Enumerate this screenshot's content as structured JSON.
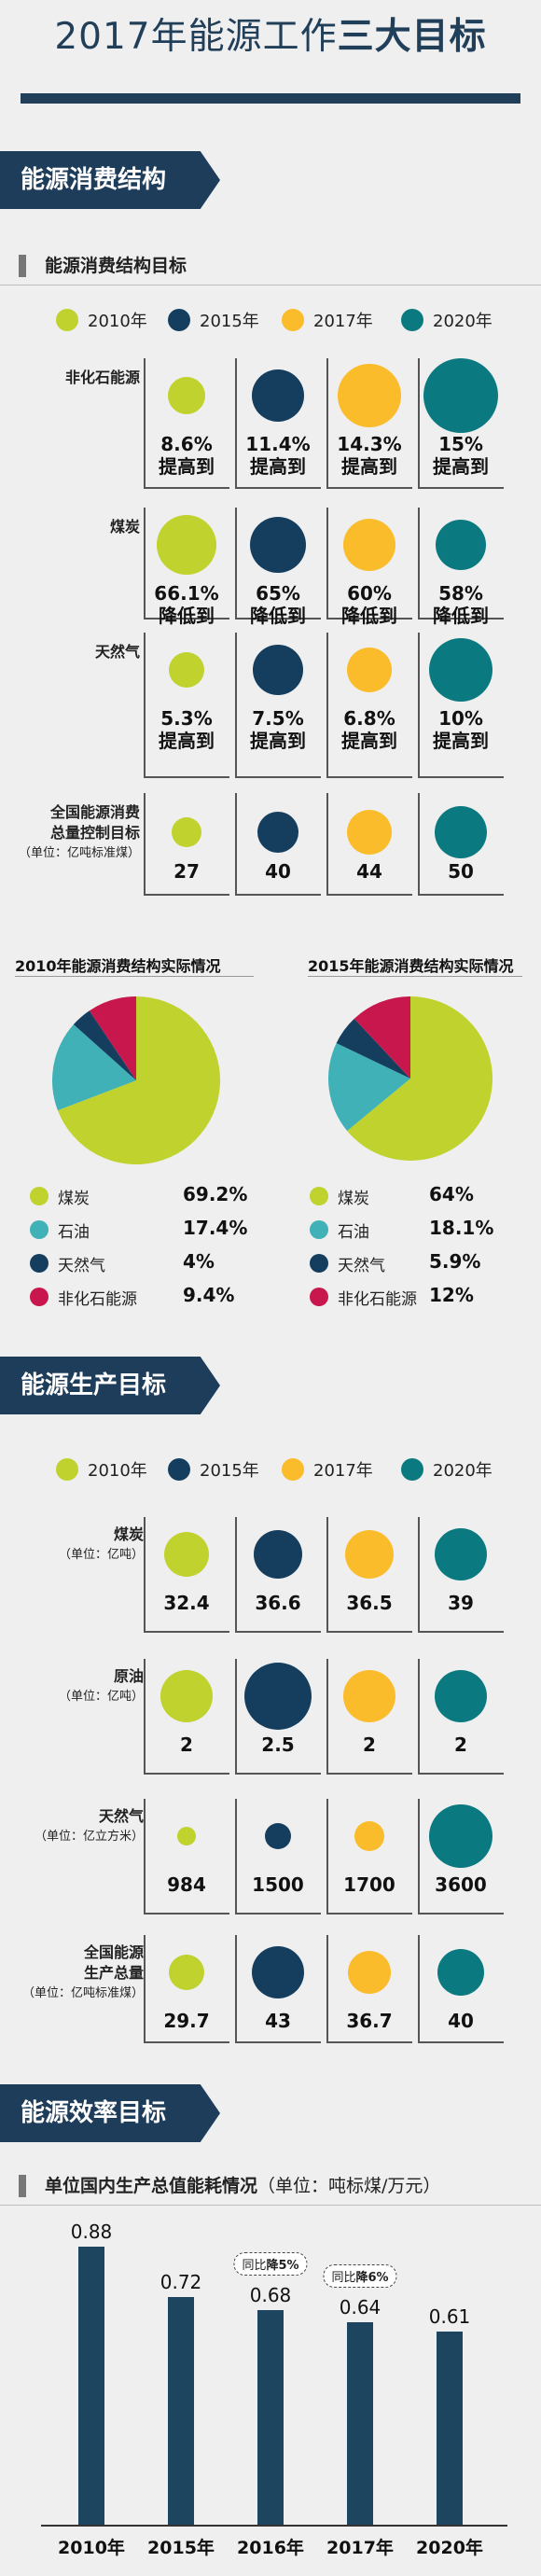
{
  "page_title": {
    "normal": "2017年能源工作",
    "bold": "三大目标"
  },
  "colors": {
    "c2010": "#bfd22e",
    "c2015": "#153e5e",
    "c2017": "#fbbc2b",
    "c2020": "#0b7a80",
    "navy": "#1d3d5a"
  },
  "legend": [
    "2010年",
    "2015年",
    "2017年",
    "2020年"
  ],
  "section1": {
    "banner": "能源消费结构",
    "sub_title": "能源消费结构目标",
    "rows": [
      {
        "label": "非化石能源",
        "unit": "",
        "values": [
          "8.6%",
          "11.4%",
          "14.3%",
          "15%"
        ],
        "suffix": "提高到",
        "sizes": [
          20,
          28,
          34,
          40
        ]
      },
      {
        "label": "煤炭",
        "unit": "",
        "values": [
          "66.1%",
          "65%",
          "60%",
          "58%"
        ],
        "suffix": "降低到",
        "sizes": [
          32,
          30,
          28,
          27
        ]
      },
      {
        "label": "天然气",
        "unit": "",
        "values": [
          "5.3%",
          "7.5%",
          "6.8%",
          "10%"
        ],
        "suffix": "提高到",
        "sizes": [
          19,
          27,
          24,
          34
        ]
      },
      {
        "label": "全国能源消费总量控制目标",
        "unit": "（单位：亿吨标准煤）",
        "values": [
          "27",
          "40",
          "44",
          "50"
        ],
        "suffix": "",
        "sizes": [
          16,
          22,
          24,
          28
        ]
      }
    ]
  },
  "pies": {
    "title_2010": "2010年能源消费结构实际情况",
    "title_2015": "2015年能源消费结构实际情况",
    "items": [
      {
        "name": "煤炭",
        "color": "#bfd22e"
      },
      {
        "name": "石油",
        "color": "#3fb1b7"
      },
      {
        "name": "天然气",
        "color": "#153e5e"
      },
      {
        "name": "非化石能源",
        "color": "#c8174d"
      }
    ],
    "values_2010": [
      "69.2%",
      "17.4%",
      "4%",
      "9.4%"
    ],
    "values_2015": [
      "64%",
      "18.1%",
      "5.9%",
      "12%"
    ]
  },
  "chart_data": [
    {
      "type": "pie",
      "title": "2010年能源消费结构实际情况",
      "categories": [
        "煤炭",
        "石油",
        "天然气",
        "非化石能源"
      ],
      "values": [
        69.2,
        17.4,
        4,
        9.4
      ]
    },
    {
      "type": "pie",
      "title": "2015年能源消费结构实际情况",
      "categories": [
        "煤炭",
        "石油",
        "天然气",
        "非化石能源"
      ],
      "values": [
        64,
        18.1,
        5.9,
        12
      ]
    },
    {
      "type": "bar",
      "title": "单位国内生产总值能耗情况（单位：吨标煤/万元）",
      "categories": [
        "2010年",
        "2015年",
        "2016年",
        "2017年",
        "2020年"
      ],
      "values": [
        0.88,
        0.72,
        0.68,
        0.64,
        0.61
      ],
      "ylabel": "吨标煤/万元"
    }
  ],
  "section2": {
    "banner": "能源生产目标",
    "rows": [
      {
        "label": "煤炭",
        "unit": "（单位：亿吨）",
        "values": [
          "32.4",
          "36.6",
          "36.5",
          "39"
        ],
        "sizes": [
          24,
          26,
          26,
          28
        ]
      },
      {
        "label": "原油",
        "unit": "（单位：亿吨）",
        "values": [
          "2",
          "2.5",
          "2",
          "2"
        ],
        "sizes": [
          28,
          36,
          28,
          28
        ]
      },
      {
        "label": "天然气",
        "unit": "（单位：亿立方米）",
        "values": [
          "984",
          "1500",
          "1700",
          "3600"
        ],
        "sizes": [
          10,
          14,
          16,
          34
        ]
      },
      {
        "label": "全国能源生产总量",
        "unit": "（单位：亿吨标准煤）",
        "values": [
          "29.7",
          "43",
          "36.7",
          "40"
        ],
        "sizes": [
          19,
          28,
          23,
          25
        ]
      }
    ]
  },
  "section3": {
    "banner": "能源效率目标",
    "sub_title": "单位国内生产总值能耗情况",
    "sub_unit": "（单位：吨标煤/万元）",
    "bars": [
      {
        "year": "2010年",
        "value": "0.88"
      },
      {
        "year": "2015年",
        "value": "0.72"
      },
      {
        "year": "2016年",
        "value": "0.68"
      },
      {
        "year": "2017年",
        "value": "0.64"
      },
      {
        "year": "2020年",
        "value": "0.61"
      }
    ],
    "tags": [
      {
        "pre": "同比",
        "bold": "降5%"
      },
      {
        "pre": "同比",
        "bold": "降6%"
      }
    ]
  }
}
